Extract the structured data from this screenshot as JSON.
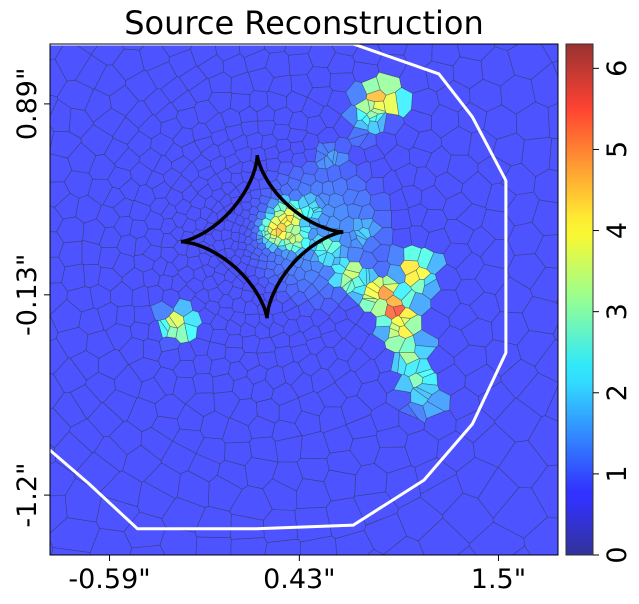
{
  "chart_data": {
    "type": "heatmap",
    "title": "Source Reconstruction",
    "xlabel": "",
    "ylabel": "",
    "x_ticks": [
      "-0.59\"",
      "0.43\"",
      "1.5\""
    ],
    "y_ticks": [
      "0.89\"",
      "-0.13\"",
      "-1.2\""
    ],
    "x_tick_values": [
      -0.59,
      0.43,
      1.5
    ],
    "y_tick_values": [
      0.89,
      -0.13,
      -1.2
    ],
    "xlim": [
      -0.91,
      1.82
    ],
    "ylim": [
      -1.52,
      1.21
    ],
    "colorbar": {
      "range": [
        0,
        6.3
      ],
      "ticks": [
        "0",
        "1",
        "2",
        "3",
        "4",
        "5",
        "6"
      ],
      "tick_values": [
        0,
        1,
        2,
        3,
        4,
        5,
        6
      ],
      "colormap": "jet",
      "alpha": 0.7
    },
    "background_value": 0.85,
    "pixelization": "voronoi",
    "grid": false,
    "source_features": [
      {
        "x": 0.37,
        "y": 0.28,
        "value": 4.2
      },
      {
        "x": 0.32,
        "y": 0.22,
        "value": 4.5
      },
      {
        "x": 0.4,
        "y": 0.18,
        "value": 3.6
      },
      {
        "x": 0.48,
        "y": 0.32,
        "value": 2.4
      },
      {
        "x": 0.58,
        "y": 0.12,
        "value": 2.9
      },
      {
        "x": 0.7,
        "y": -0.02,
        "value": 3.6
      },
      {
        "x": 0.78,
        "y": -0.08,
        "value": 2.6
      },
      {
        "x": 0.87,
        "y": -0.13,
        "value": 5.2
      },
      {
        "x": 0.95,
        "y": -0.22,
        "value": 5.4
      },
      {
        "x": 0.99,
        "y": -0.33,
        "value": 4.1
      },
      {
        "x": 1.02,
        "y": -0.45,
        "value": 3.3
      },
      {
        "x": 1.05,
        "y": -0.58,
        "value": 3.1
      },
      {
        "x": 1.1,
        "y": -0.7,
        "value": 2.2
      },
      {
        "x": 1.05,
        "y": 0.0,
        "value": 4.6
      },
      {
        "x": 0.78,
        "y": 0.2,
        "value": 2.0
      },
      {
        "x": 0.6,
        "y": 0.6,
        "value": 1.6
      },
      {
        "x": 0.8,
        "y": 0.75,
        "value": 1.5
      },
      {
        "x": 0.88,
        "y": 0.92,
        "value": 5.4
      },
      {
        "x": 0.81,
        "y": 0.86,
        "value": 3.3
      },
      {
        "x": -0.22,
        "y": -0.28,
        "value": 3.8
      }
    ],
    "caustic": {
      "center": [
        0.23,
        0.18
      ],
      "radius": 0.46,
      "color": "#000000"
    },
    "critical_curve": {
      "color": "#ffffff",
      "points": [
        [
          -0.91,
          1.21
        ],
        [
          -0.82,
          1.21
        ],
        [
          0.2,
          1.21
        ],
        [
          0.72,
          1.21
        ],
        [
          1.18,
          1.05
        ],
        [
          1.36,
          0.82
        ],
        [
          1.54,
          0.48
        ],
        [
          1.54,
          -0.44
        ],
        [
          1.36,
          -0.82
        ],
        [
          1.1,
          -1.12
        ],
        [
          0.72,
          -1.36
        ],
        [
          0.2,
          -1.38
        ],
        [
          -0.44,
          -1.38
        ],
        [
          -0.7,
          -1.14
        ],
        [
          -0.91,
          -0.96
        ]
      ]
    }
  }
}
